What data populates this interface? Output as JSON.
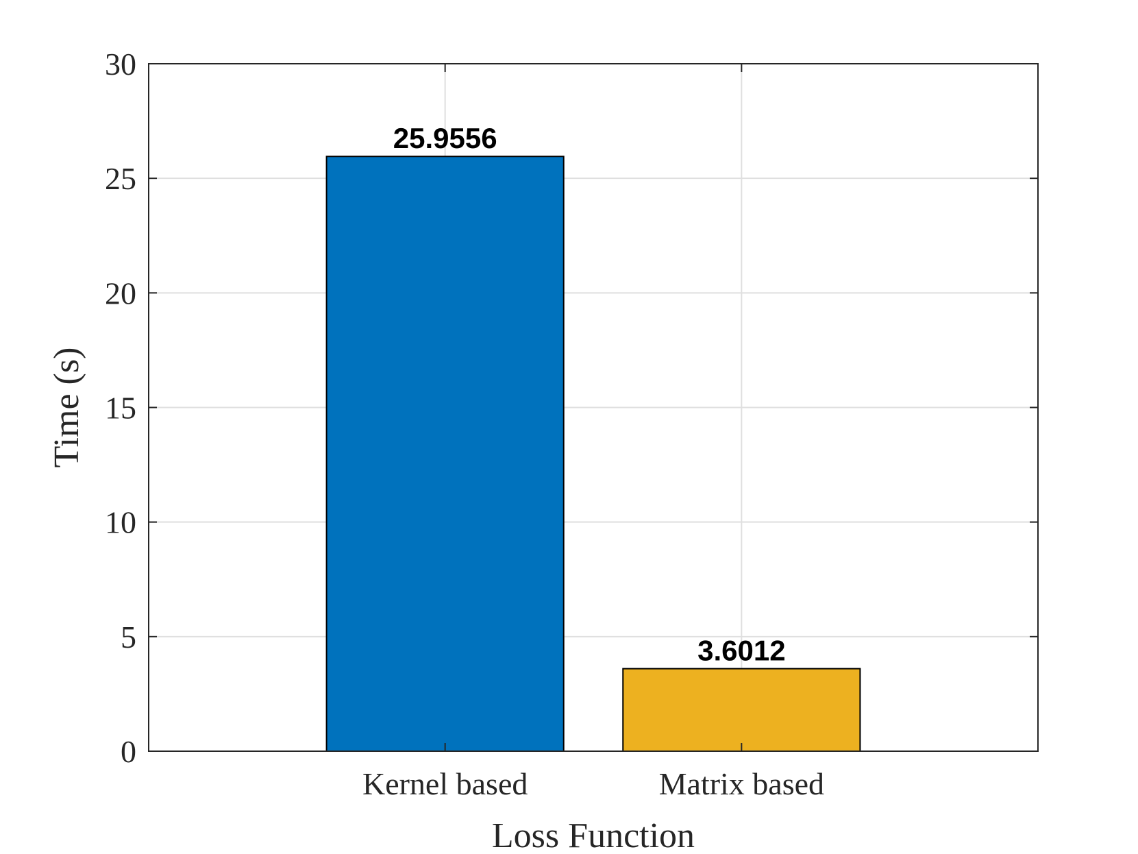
{
  "chart_data": {
    "type": "bar",
    "categories": [
      "Kernel based",
      "Matrix based"
    ],
    "values": [
      25.9556,
      3.6012
    ],
    "data_labels": [
      "25.9556",
      "3.6012"
    ],
    "colors": [
      "#0072BD",
      "#EDB120"
    ],
    "xlabel": "Loss Function",
    "ylabel": "Time (s)",
    "ylim": [
      0,
      30
    ],
    "yticks": [
      0,
      5,
      10,
      15,
      20,
      25,
      30
    ],
    "ytick_labels": [
      "0",
      "5",
      "10",
      "15",
      "20",
      "25",
      "30"
    ],
    "grid": true
  }
}
